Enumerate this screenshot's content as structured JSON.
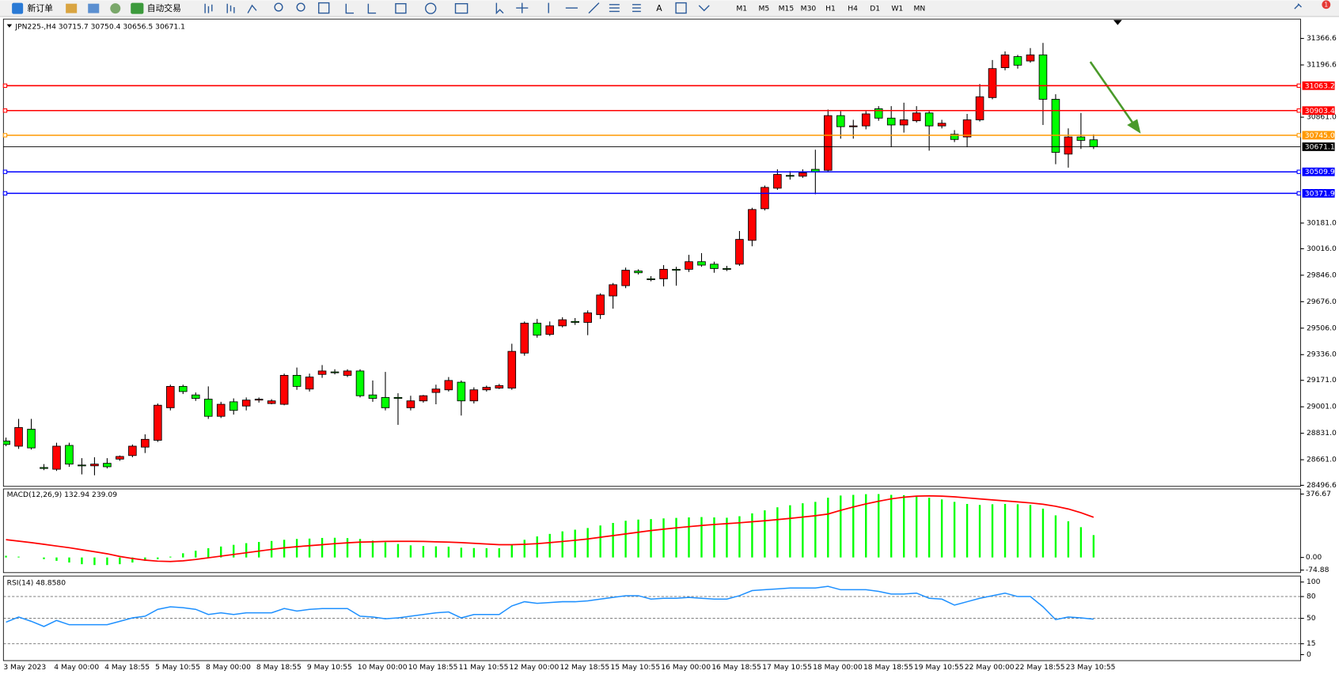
{
  "toolbar": {
    "buttons": [
      "新订单",
      "自动交易"
    ],
    "timeframes": [
      "M1",
      "M5",
      "M15",
      "M30",
      "H1",
      "H4",
      "D1",
      "W1",
      "MN"
    ],
    "badge": "1"
  },
  "chart_data": [
    {
      "type": "candlestick",
      "title": "JPN225-,H4  30715.7 30750.4 30656.5 30671.1",
      "up_color": "#ff0000",
      "down_color": "#00ff00",
      "categories": [
        "3 May 2023",
        null,
        null,
        null,
        "4 May 00:00",
        null,
        null,
        null,
        "4 May 18:55",
        null,
        null,
        null,
        "5 May 10:55",
        null,
        null,
        null,
        "8 May 00:00",
        null,
        null,
        null,
        "8 May 18:55",
        null,
        null,
        null,
        "9 May 10:55",
        null,
        null,
        null,
        "10 May 00:00",
        null,
        null,
        null,
        "10 May 18:55",
        null,
        null,
        null,
        "11 May 10:55",
        null,
        null,
        null,
        "12 May 00:00",
        null,
        null,
        null,
        "12 May 18:55",
        null,
        null,
        null,
        "15 May 10:55",
        null,
        null,
        null,
        "16 May 00:00",
        null,
        null,
        null,
        "16 May 18:55",
        null,
        null,
        null,
        "17 May 10:55",
        null,
        null,
        null,
        "18 May 00:00",
        null,
        null,
        null,
        "18 May 18:55",
        null,
        null,
        null,
        "19 May 10:55",
        null,
        null,
        null,
        "22 May 00:00",
        null,
        null,
        null,
        "22 May 18:55",
        null,
        null,
        null,
        "23 May 10:55",
        null,
        null
      ],
      "open": [
        28781,
        28748,
        28857,
        28611,
        28600,
        28753,
        28627,
        28622,
        28638,
        28665,
        28688,
        28742,
        28786,
        28995,
        29132,
        29077,
        29050,
        28940,
        29033,
        29006,
        29044,
        29022,
        29017,
        29203,
        29115,
        29209,
        29225,
        29203,
        29231,
        29077,
        29061,
        29061,
        28995,
        29039,
        29093,
        29110,
        29159,
        29039,
        29110,
        29121,
        29121,
        29346,
        29538,
        29466,
        29521,
        29549,
        29543,
        29593,
        29713,
        29779,
        29873,
        29823,
        29823,
        29884,
        29884,
        29933,
        29917,
        29889,
        29917,
        30070,
        30273,
        30405,
        30487,
        30482,
        30526,
        30520,
        30871,
        30800,
        30805,
        30915,
        30855,
        30811,
        30838,
        30888,
        30805,
        30751,
        30734,
        30844,
        30987,
        31179,
        31250,
        31222,
        31261,
        30976,
        30624,
        30734,
        30715.7
      ],
      "high": [
        28803,
        28923,
        28923,
        28633,
        28770,
        28770,
        28671,
        28677,
        28671,
        28688,
        28759,
        28824,
        29022,
        29143,
        29143,
        29093,
        29132,
        29033,
        29055,
        29061,
        29061,
        29050,
        29214,
        29253,
        29214,
        29269,
        29242,
        29242,
        29242,
        29170,
        29225,
        29088,
        29072,
        29077,
        29143,
        29192,
        29170,
        29126,
        29137,
        29148,
        29406,
        29549,
        29565,
        29549,
        29576,
        29571,
        29620,
        29730,
        29796,
        29895,
        29884,
        29840,
        29911,
        29900,
        29977,
        29988,
        29933,
        29906,
        30130,
        30279,
        30422,
        30526,
        30515,
        30526,
        30652,
        30910,
        30899,
        30844,
        30899,
        30932,
        30932,
        30954,
        30932,
        30899,
        30844,
        30778,
        30882,
        31074,
        31228,
        31283,
        31261,
        31305,
        31338,
        31008,
        30789,
        30888,
        30750.4
      ],
      "low": [
        28748,
        28731,
        28726,
        28594,
        28589,
        28616,
        28567,
        28561,
        28605,
        28654,
        28677,
        28704,
        28775,
        28978,
        29083,
        29039,
        28923,
        28929,
        28951,
        28978,
        29028,
        29017,
        29011,
        29110,
        29099,
        29187,
        29209,
        29192,
        29061,
        29033,
        28978,
        28885,
        28978,
        29028,
        29017,
        29099,
        28945,
        29022,
        29099,
        29115,
        29110,
        29329,
        29445,
        29456,
        29511,
        29527,
        29461,
        29565,
        29631,
        29763,
        29851,
        29807,
        29774,
        29779,
        29867,
        29900,
        29862,
        29873,
        29906,
        30032,
        30262,
        30394,
        30460,
        30471,
        30366,
        30509,
        30723,
        30723,
        30783,
        30838,
        30668,
        30762,
        30827,
        30646,
        30789,
        30701,
        30668,
        30833,
        30976,
        31162,
        31173,
        31211,
        30811,
        30559,
        30537,
        30657,
        30656.5
      ],
      "close": [
        28759,
        28868,
        28737,
        28605,
        28748,
        28633,
        28622,
        28633,
        28616,
        28682,
        28748,
        28792,
        29011,
        29132,
        29099,
        29055,
        28940,
        29017,
        28978,
        29044,
        29050,
        29039,
        29203,
        29132,
        29192,
        29231,
        29220,
        29231,
        29072,
        29055,
        28995,
        29055,
        29039,
        29072,
        29115,
        29170,
        29039,
        29110,
        29126,
        29137,
        29357,
        29538,
        29461,
        29521,
        29560,
        29543,
        29604,
        29719,
        29785,
        29878,
        29862,
        29818,
        29884,
        29878,
        29933,
        29911,
        29889,
        29884,
        30076,
        30268,
        30410,
        30493,
        30482,
        30504,
        30509,
        30871,
        30800,
        30805,
        30882,
        30855,
        30811,
        30844,
        30888,
        30805,
        30822,
        30718,
        30844,
        30992,
        31173,
        31261,
        31195,
        31261,
        30976,
        30635,
        30734,
        30712,
        30671.1
      ],
      "ylim": [
        28490,
        31480
      ],
      "yticks": [
        31366.6,
        31196.6,
        {
          "value": 30861,
          "label": "30861.0"
        },
        {
          "value": 30181,
          "label": "30181.0"
        },
        {
          "value": 30016,
          "label": "30016.0"
        },
        {
          "value": 29846,
          "label": "29846.0"
        },
        {
          "value": 29676,
          "label": "29676.0"
        },
        {
          "value": 29506,
          "label": "29506.0"
        },
        {
          "value": 29336,
          "label": "29336.0"
        },
        {
          "value": 29171,
          "label": "29171.0"
        },
        {
          "value": 29001,
          "label": "29001.0"
        },
        {
          "value": 28831,
          "label": "28831.0"
        },
        {
          "value": 28661,
          "label": "28661.0"
        },
        28496.6
      ],
      "hlines": [
        {
          "value": 31063.2,
          "color": "#ff0000"
        },
        {
          "value": 30903.4,
          "color": "#ff0000"
        },
        {
          "value": 30745,
          "label": "30745.0",
          "color": "#ff9900"
        },
        {
          "value": 30671.1,
          "color": "#000000"
        },
        {
          "value": 30509.9,
          "color": "#0000ff"
        },
        {
          "value": 30371.9,
          "color": "#0000ff"
        }
      ]
    },
    {
      "type": "macd",
      "title": "MACD(12,26,9) 132.94 239.09",
      "series": [
        {
          "style": "bar",
          "color": "#00ff00",
          "values": [
            10,
            5,
            0,
            -10,
            -20,
            -30,
            -40,
            -45,
            -45,
            -40,
            -30,
            -20,
            -10,
            5,
            25,
            40,
            55,
            65,
            75,
            85,
            92,
            98,
            105,
            110,
            112,
            116,
            117,
            115,
            110,
            100,
            90,
            80,
            72,
            68,
            66,
            64,
            58,
            56,
            55,
            55,
            75,
            105,
            125,
            140,
            155,
            165,
            175,
            190,
            205,
            218,
            225,
            228,
            232,
            235,
            238,
            240,
            238,
            236,
            245,
            262,
            280,
            298,
            310,
            322,
            330,
            355,
            368,
            372,
            376,
            376.67,
            372,
            370,
            365,
            355,
            345,
            330,
            318,
            312,
            316,
            318,
            316,
            312,
            290,
            250,
            215,
            180,
            132.94
          ]
        },
        {
          "style": "line",
          "color": "#ff0000",
          "values": [
            106,
            97,
            88,
            78,
            68,
            58,
            46,
            34,
            22,
            6,
            -6,
            -16,
            -22,
            -24,
            -20,
            -12,
            -2,
            8,
            18,
            28,
            38,
            48,
            57,
            64,
            70,
            76,
            82,
            87,
            91,
            93,
            95,
            96,
            96,
            95,
            93,
            91,
            88,
            84,
            80,
            76,
            76,
            78,
            82,
            88,
            95,
            102,
            110,
            120,
            130,
            140,
            150,
            160,
            168,
            176,
            183,
            190,
            196,
            201,
            206,
            212,
            218,
            225,
            232,
            240,
            248,
            258,
            280,
            300,
            318,
            334,
            348,
            358,
            364,
            366,
            364,
            360,
            354,
            348,
            342,
            336,
            330,
            324,
            316,
            304,
            288,
            266,
            239.09
          ]
        }
      ],
      "ylim": [
        -74.88,
        376.67
      ],
      "yticks": [
        376.67,
        {
          "value": 0,
          "label": "0.00"
        },
        -74.88
      ]
    },
    {
      "type": "line",
      "title": "RSI(14) 48.8580",
      "color": "#1e90ff",
      "values": [
        44.7,
        51.8,
        45.9,
        38.8,
        47.1,
        41.2,
        41.2,
        41.2,
        41.2,
        45.9,
        50.6,
        52.9,
        62.4,
        65.9,
        64.7,
        62.4,
        55.3,
        57.6,
        55.3,
        57.6,
        57.6,
        57.6,
        63.5,
        60,
        62.4,
        63.5,
        63.5,
        63.5,
        52.9,
        51.8,
        49.4,
        50.6,
        52.9,
        55.3,
        57.6,
        58.8,
        50.6,
        55.3,
        55.3,
        55.3,
        67.1,
        72.9,
        70.6,
        71.8,
        72.9,
        72.9,
        74.1,
        76.5,
        78.8,
        81.2,
        81.2,
        76.5,
        77.6,
        77.6,
        78.8,
        77.6,
        76.5,
        76.5,
        81.2,
        88.2,
        89.4,
        90.6,
        91.8,
        91.8,
        91.8,
        94.1,
        89.4,
        89.4,
        89.4,
        87.1,
        83.5,
        83.5,
        84.7,
        77.6,
        76.5,
        68.2,
        72.9,
        77.6,
        81.2,
        84.7,
        80,
        80,
        65.9,
        48.2,
        51.8,
        50.6,
        48.858
      ],
      "ylim": [
        0,
        100
      ],
      "yticks": [
        100,
        80,
        50,
        15,
        0
      ]
    }
  ]
}
